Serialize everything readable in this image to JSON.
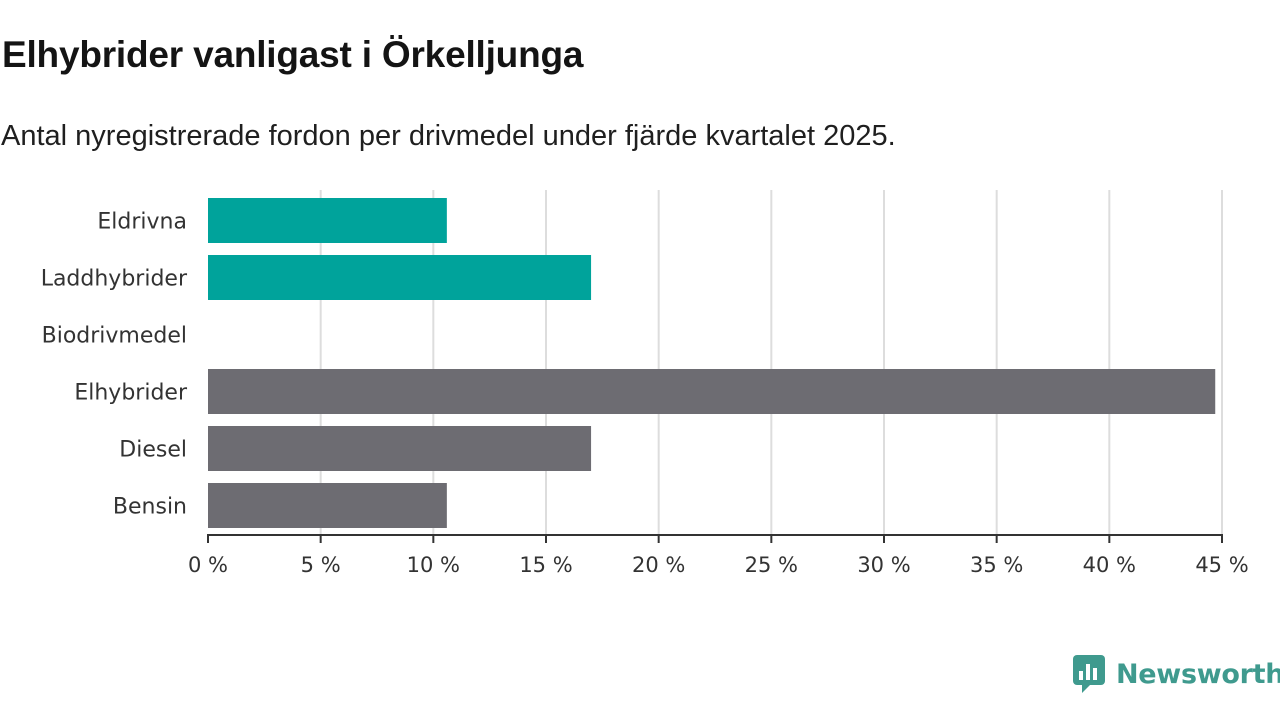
{
  "header": {
    "title": "Elhybrider vanligast i Örkelljunga",
    "subtitle": "Antal nyregistrerade fordon per drivmedel under fjärde kvartalet 2025."
  },
  "brand": {
    "name": "Newsworthy"
  },
  "colors": {
    "highlight": "#00a39b",
    "default": "#6d6c72",
    "grid": "#dddddd",
    "axis": "#333333"
  },
  "chart_data": {
    "type": "bar",
    "orientation": "horizontal",
    "title": "Elhybrider vanligast i Örkelljunga",
    "subtitle": "Antal nyregistrerade fordon per drivmedel under fjärde kvartalet 2025.",
    "categories": [
      "Eldrivna",
      "Laddhybrider",
      "Biodrivmedel",
      "Elhybrider",
      "Diesel",
      "Bensin"
    ],
    "values": [
      10.6,
      17.0,
      0,
      44.7,
      17.0,
      10.6
    ],
    "highlight": [
      true,
      true,
      true,
      false,
      false,
      false
    ],
    "unit": "%",
    "xlim": [
      0,
      45
    ],
    "ticks": [
      0,
      5,
      10,
      15,
      20,
      25,
      30,
      35,
      40,
      45
    ],
    "tick_labels": [
      "0 %",
      "5 %",
      "10 %",
      "15 %",
      "20 %",
      "25 %",
      "30 %",
      "35 %",
      "40 %",
      "45 %"
    ],
    "grid": true,
    "legend": "none"
  }
}
